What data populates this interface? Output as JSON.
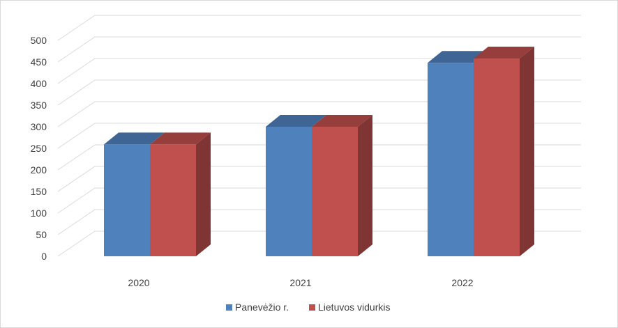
{
  "chart_data": {
    "type": "bar",
    "title": "",
    "xlabel": "",
    "ylabel": "",
    "categories": [
      "2020",
      "2021",
      "2022"
    ],
    "series": [
      {
        "name": "Panevėžio r.",
        "values": [
          259,
          300,
          448
        ],
        "color": "#4f81bd"
      },
      {
        "name": "Lietuvos vidurkis",
        "values": [
          259,
          300,
          458
        ],
        "color": "#c0504d"
      }
    ],
    "ylim": [
      0,
      500
    ],
    "y_ticks": [
      "0",
      "50",
      "100",
      "150",
      "200",
      "250",
      "300",
      "350",
      "400",
      "450",
      "500"
    ],
    "grid": true,
    "legend": "bottom",
    "style": "3d-column"
  }
}
